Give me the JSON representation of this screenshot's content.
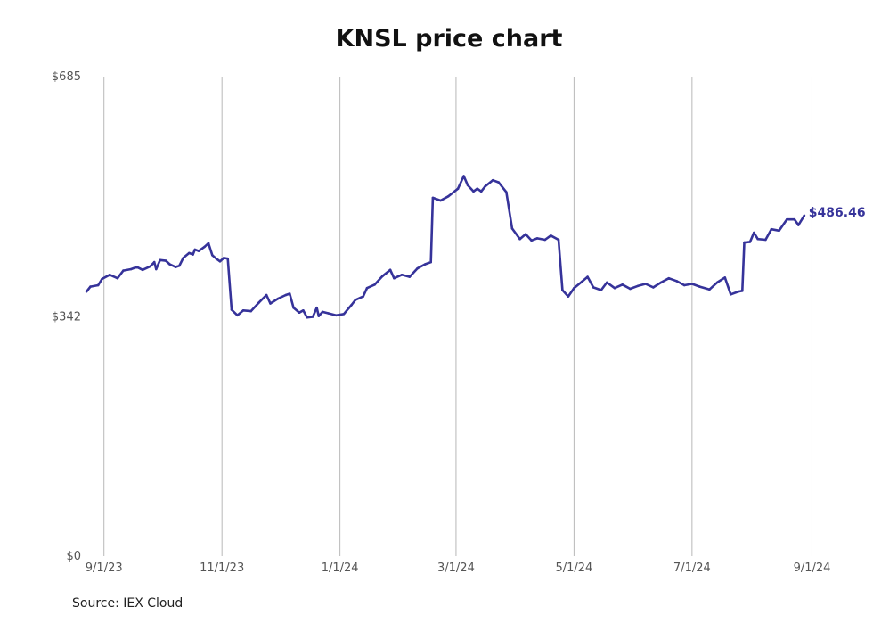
{
  "title": "KNSL price chart",
  "source": "Source: IEX Cloud",
  "colors": {
    "line": "#36339a",
    "grid": "#b8b8b8"
  },
  "chart_data": {
    "type": "line",
    "title": "KNSL price chart",
    "xlabel": "",
    "ylabel": "",
    "y_ticks": [
      {
        "value": 0,
        "label": "$0"
      },
      {
        "value": 342,
        "label": "$342"
      },
      {
        "value": 685,
        "label": "$685"
      }
    ],
    "x_ticks": [
      {
        "date": "2023-09-01",
        "label": "9/1/23"
      },
      {
        "date": "2023-11-01",
        "label": "11/1/23"
      },
      {
        "date": "2024-01-01",
        "label": "1/1/24"
      },
      {
        "date": "2024-03-01",
        "label": "3/1/24"
      },
      {
        "date": "2024-05-01",
        "label": "5/1/24"
      },
      {
        "date": "2024-07-01",
        "label": "7/1/24"
      },
      {
        "date": "2024-09-01",
        "label": "9/1/24"
      }
    ],
    "ylim": [
      0,
      685
    ],
    "xlim": [
      "2023-08-22",
      "2024-09-04"
    ],
    "grid": "vertical",
    "end_label": "$486.46",
    "series": [
      {
        "points": [
          [
            "2023-08-23",
            378
          ],
          [
            "2023-08-25",
            385
          ],
          [
            "2023-08-29",
            387
          ],
          [
            "2023-08-31",
            396
          ],
          [
            "2023-09-04",
            402
          ],
          [
            "2023-09-08",
            397
          ],
          [
            "2023-09-11",
            408
          ],
          [
            "2023-09-15",
            410
          ],
          [
            "2023-09-18",
            413
          ],
          [
            "2023-09-21",
            409
          ],
          [
            "2023-09-25",
            414
          ],
          [
            "2023-09-27",
            420
          ],
          [
            "2023-09-28",
            410
          ],
          [
            "2023-09-30",
            423
          ],
          [
            "2023-10-03",
            422
          ],
          [
            "2023-10-05",
            417
          ],
          [
            "2023-10-08",
            413
          ],
          [
            "2023-10-10",
            415
          ],
          [
            "2023-10-12",
            426
          ],
          [
            "2023-10-15",
            433
          ],
          [
            "2023-10-17",
            431
          ],
          [
            "2023-10-18",
            438
          ],
          [
            "2023-10-20",
            436
          ],
          [
            "2023-10-23",
            442
          ],
          [
            "2023-10-25",
            447
          ],
          [
            "2023-10-27",
            430
          ],
          [
            "2023-10-29",
            425
          ],
          [
            "2023-10-31",
            421
          ],
          [
            "2023-11-02",
            426
          ],
          [
            "2023-11-04",
            425
          ],
          [
            "2023-11-06",
            352
          ],
          [
            "2023-11-09",
            344
          ],
          [
            "2023-11-12",
            351
          ],
          [
            "2023-11-16",
            350
          ],
          [
            "2023-11-20",
            362
          ],
          [
            "2023-11-24",
            373
          ],
          [
            "2023-11-26",
            361
          ],
          [
            "2023-11-30",
            368
          ],
          [
            "2023-12-04",
            373
          ],
          [
            "2023-12-06",
            375
          ],
          [
            "2023-12-08",
            355
          ],
          [
            "2023-12-11",
            348
          ],
          [
            "2023-12-13",
            351
          ],
          [
            "2023-12-15",
            341
          ],
          [
            "2023-12-18",
            342
          ],
          [
            "2023-12-20",
            355
          ],
          [
            "2023-12-21",
            343
          ],
          [
            "2023-12-23",
            349
          ],
          [
            "2023-12-26",
            347
          ],
          [
            "2023-12-30",
            344
          ],
          [
            "2024-01-03",
            346
          ],
          [
            "2024-01-07",
            359
          ],
          [
            "2024-01-09",
            366
          ],
          [
            "2024-01-13",
            371
          ],
          [
            "2024-01-15",
            383
          ],
          [
            "2024-01-19",
            388
          ],
          [
            "2024-01-23",
            400
          ],
          [
            "2024-01-27",
            409
          ],
          [
            "2024-01-29",
            397
          ],
          [
            "2024-02-02",
            402
          ],
          [
            "2024-02-06",
            399
          ],
          [
            "2024-02-10",
            411
          ],
          [
            "2024-02-14",
            417
          ],
          [
            "2024-02-17",
            420
          ],
          [
            "2024-02-18",
            512
          ],
          [
            "2024-02-22",
            508
          ],
          [
            "2024-02-26",
            514
          ],
          [
            "2024-03-02",
            525
          ],
          [
            "2024-03-05",
            543
          ],
          [
            "2024-03-07",
            530
          ],
          [
            "2024-03-10",
            521
          ],
          [
            "2024-03-12",
            525
          ],
          [
            "2024-03-14",
            521
          ],
          [
            "2024-03-16",
            528
          ],
          [
            "2024-03-20",
            537
          ],
          [
            "2024-03-23",
            534
          ],
          [
            "2024-03-27",
            520
          ],
          [
            "2024-03-30",
            468
          ],
          [
            "2024-04-03",
            453
          ],
          [
            "2024-04-06",
            460
          ],
          [
            "2024-04-09",
            451
          ],
          [
            "2024-04-12",
            454
          ],
          [
            "2024-04-16",
            452
          ],
          [
            "2024-04-19",
            458
          ],
          [
            "2024-04-23",
            452
          ],
          [
            "2024-04-25",
            380
          ],
          [
            "2024-04-28",
            371
          ],
          [
            "2024-05-01",
            383
          ],
          [
            "2024-05-05",
            392
          ],
          [
            "2024-05-08",
            399
          ],
          [
            "2024-05-11",
            384
          ],
          [
            "2024-05-15",
            380
          ],
          [
            "2024-05-18",
            391
          ],
          [
            "2024-05-22",
            383
          ],
          [
            "2024-05-26",
            388
          ],
          [
            "2024-05-30",
            382
          ],
          [
            "2024-06-03",
            386
          ],
          [
            "2024-06-07",
            389
          ],
          [
            "2024-06-11",
            384
          ],
          [
            "2024-06-15",
            391
          ],
          [
            "2024-06-19",
            397
          ],
          [
            "2024-06-23",
            393
          ],
          [
            "2024-06-27",
            387
          ],
          [
            "2024-07-01",
            389
          ],
          [
            "2024-07-05",
            385
          ],
          [
            "2024-07-10",
            381
          ],
          [
            "2024-07-14",
            391
          ],
          [
            "2024-07-18",
            398
          ],
          [
            "2024-07-21",
            374
          ],
          [
            "2024-07-25",
            378
          ],
          [
            "2024-07-27",
            379
          ],
          [
            "2024-07-28",
            448
          ],
          [
            "2024-07-31",
            449
          ],
          [
            "2024-08-02",
            462
          ],
          [
            "2024-08-04",
            453
          ],
          [
            "2024-08-08",
            452
          ],
          [
            "2024-08-11",
            467
          ],
          [
            "2024-08-15",
            465
          ],
          [
            "2024-08-19",
            481
          ],
          [
            "2024-08-23",
            481
          ],
          [
            "2024-08-25",
            473
          ],
          [
            "2024-08-28",
            486.46
          ]
        ]
      }
    ]
  }
}
